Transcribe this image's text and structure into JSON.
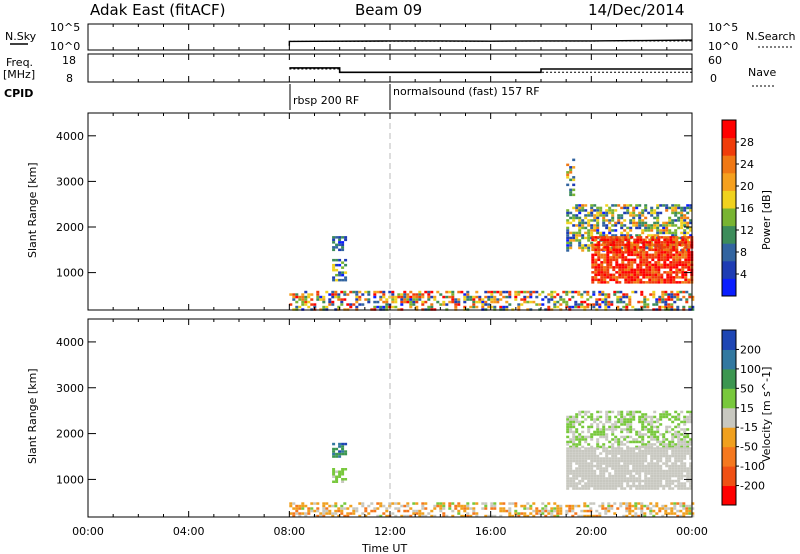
{
  "header": {
    "radar": "Adak East (fitACF)",
    "beam": "Beam 09",
    "date": "14/Dec/2014"
  },
  "top_panels": {
    "nsky_label": "N.Sky",
    "nsky_ticks": [
      "10^5",
      "10^0"
    ],
    "nsearch_label": "N.Search",
    "nsearch_ticks": [
      "10^5",
      "10^0"
    ],
    "freq_label_line1": "Freq.",
    "freq_label_line2": "[MHz]",
    "freq_ticks": [
      "18",
      "8"
    ],
    "nave_label": "Nave",
    "nave_ticks": [
      "60",
      "0"
    ],
    "cpid_label": "CPID",
    "cpid_segments": [
      "rbsp 200 RF",
      "normalsound (fast) 157 RF"
    ]
  },
  "colors": {
    "power": [
      "#0a1eff",
      "#1e3cb4",
      "#3264a0",
      "#3c8c5a",
      "#78b432",
      "#f0d21e",
      "#f5a01e",
      "#f07814",
      "#f03c0a",
      "#ff0000"
    ],
    "velocity": [
      "#ff0000",
      "#f05014",
      "#f5781e",
      "#f0a01e",
      "#c8c8c0",
      "#78c83c",
      "#3c9650",
      "#3278a0",
      "#1e46b4"
    ],
    "ground": "#c8c8c0",
    "dashed": "#bbbbbb"
  },
  "chart_data": [
    {
      "type": "line",
      "title": "N.Sky / N.Search",
      "x_unit": "hours UT",
      "xlim": [
        0,
        24
      ],
      "ylim_log10": [
        0,
        5
      ],
      "series": [
        {
          "name": "N.Sky",
          "x": [
            0,
            8,
            8,
            10,
            12,
            14,
            16,
            18,
            20,
            22,
            24
          ],
          "y_log10": [
            null,
            0.5,
            1.5,
            1.55,
            1.6,
            1.6,
            1.55,
            1.6,
            1.6,
            1.7,
            1.8
          ]
        },
        {
          "name": "N.Search",
          "x": [
            8,
            24
          ],
          "y_log10": [
            1.5,
            1.6
          ]
        }
      ]
    },
    {
      "type": "line",
      "title": "Freq. / Nave",
      "x_unit": "hours UT",
      "xlim": [
        0,
        24
      ],
      "ylim": [
        8,
        18
      ],
      "series": [
        {
          "name": "Freq.",
          "unit": "MHz",
          "x": [
            8,
            10,
            10,
            18,
            18,
            24
          ],
          "y": [
            13.5,
            13.5,
            11.5,
            11.5,
            13,
            13
          ]
        },
        {
          "name": "Nave",
          "x": [
            8,
            10,
            10,
            24
          ],
          "y": [
            30,
            30,
            21,
            21
          ]
        }
      ]
    },
    {
      "type": "heatmap",
      "quantity": "Power",
      "colorbar_label": "Power [dB]",
      "xlabel": "",
      "ylabel": "Slant Range [km]",
      "xlim": [
        0,
        24
      ],
      "ylim": [
        180,
        4500
      ],
      "colorbar_ticks": [
        "4",
        "8",
        "12",
        "16",
        "20",
        "24",
        "28"
      ],
      "colorbar_range": [
        0,
        30
      ],
      "regions": [
        {
          "x": [
            8.0,
            24.0
          ],
          "y": [
            180,
            600
          ],
          "value_range": [
            2,
            30
          ],
          "density": 0.5
        },
        {
          "x": [
            9.7,
            10.2
          ],
          "y": [
            1500,
            1800
          ],
          "value_range": [
            2,
            12
          ],
          "density": 0.6
        },
        {
          "x": [
            9.7,
            10.2
          ],
          "y": [
            850,
            1300
          ],
          "value_range": [
            2,
            16
          ],
          "density": 0.6
        },
        {
          "x": [
            19.0,
            24.0
          ],
          "y": [
            1500,
            2500
          ],
          "value_range": [
            2,
            22
          ],
          "density": 0.6
        },
        {
          "x": [
            20.0,
            24.0
          ],
          "y": [
            800,
            1800
          ],
          "value_range": [
            22,
            30
          ],
          "density": 0.85
        },
        {
          "x": [
            19.0,
            19.3
          ],
          "y": [
            2700,
            3500
          ],
          "value_range": [
            4,
            24
          ],
          "density": 0.4
        }
      ]
    },
    {
      "type": "heatmap",
      "quantity": "Velocity",
      "colorbar_label": "Velocity [m s^-1]",
      "xlabel": "Time UT",
      "ylabel": "Slant Range [km]",
      "xlim": [
        0,
        24
      ],
      "ylim": [
        180,
        4500
      ],
      "x_ticks": [
        "00:00",
        "04:00",
        "08:00",
        "12:00",
        "16:00",
        "20:00",
        "00:00"
      ],
      "colorbar_ticks": [
        "-200",
        "-100",
        "-50",
        "-15",
        "15",
        "50",
        "100",
        "200"
      ],
      "colorbar_range": [
        -250,
        250
      ],
      "regions": [
        {
          "x": [
            8.0,
            24.0
          ],
          "y": [
            180,
            500
          ],
          "value_range": [
            -120,
            40
          ],
          "density": 0.5
        },
        {
          "x": [
            9.7,
            10.2
          ],
          "y": [
            1500,
            1800
          ],
          "value_range": [
            100,
            220
          ],
          "density": 0.6
        },
        {
          "x": [
            9.7,
            10.2
          ],
          "y": [
            950,
            1250
          ],
          "value_range": [
            20,
            80
          ],
          "density": 0.6
        },
        {
          "x": [
            19.0,
            24.0
          ],
          "y": [
            1700,
            2500
          ],
          "value_range": [
            -15,
            80
          ],
          "density": 0.6
        },
        {
          "x": [
            19.0,
            24.0
          ],
          "y": [
            800,
            1700
          ],
          "value_range": [
            -10,
            10
          ],
          "density": 0.85
        }
      ]
    }
  ]
}
